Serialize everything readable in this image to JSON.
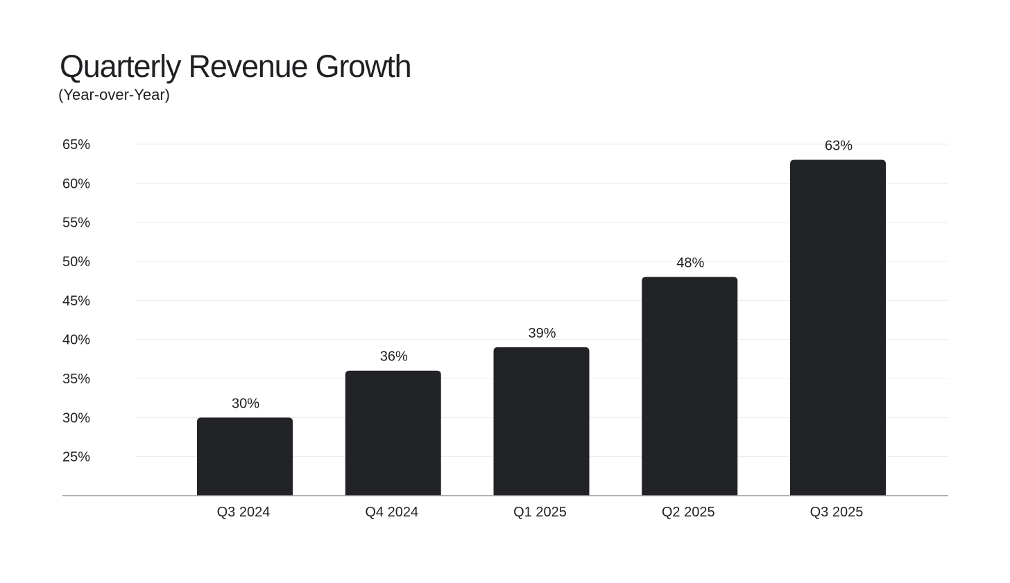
{
  "title": "Quarterly Revenue Growth",
  "subtitle": "(Year-over-Year)",
  "colors": {
    "bar": "#222326",
    "grid": "#ececec",
    "baseline": "#9a9a9a",
    "text": "#1f2023"
  },
  "chart_data": {
    "type": "bar",
    "title": "Quarterly Revenue Growth",
    "subtitle": "(Year-over-Year)",
    "xlabel": "",
    "ylabel": "",
    "categories": [
      "Q3 2024",
      "Q4 2024",
      "Q1 2025",
      "Q2 2025",
      "Q3 2025"
    ],
    "values": [
      30,
      36,
      39,
      48,
      63
    ],
    "value_labels": [
      "30%",
      "36%",
      "39%",
      "48%",
      "63%"
    ],
    "yticks": [
      25,
      30,
      35,
      40,
      45,
      50,
      55,
      60,
      65
    ],
    "ytick_labels": [
      "25%",
      "30%",
      "35%",
      "40%",
      "45%",
      "50%",
      "55%",
      "60%",
      "65%"
    ],
    "ylim": [
      20,
      65
    ],
    "grid": true,
    "legend": "none"
  }
}
